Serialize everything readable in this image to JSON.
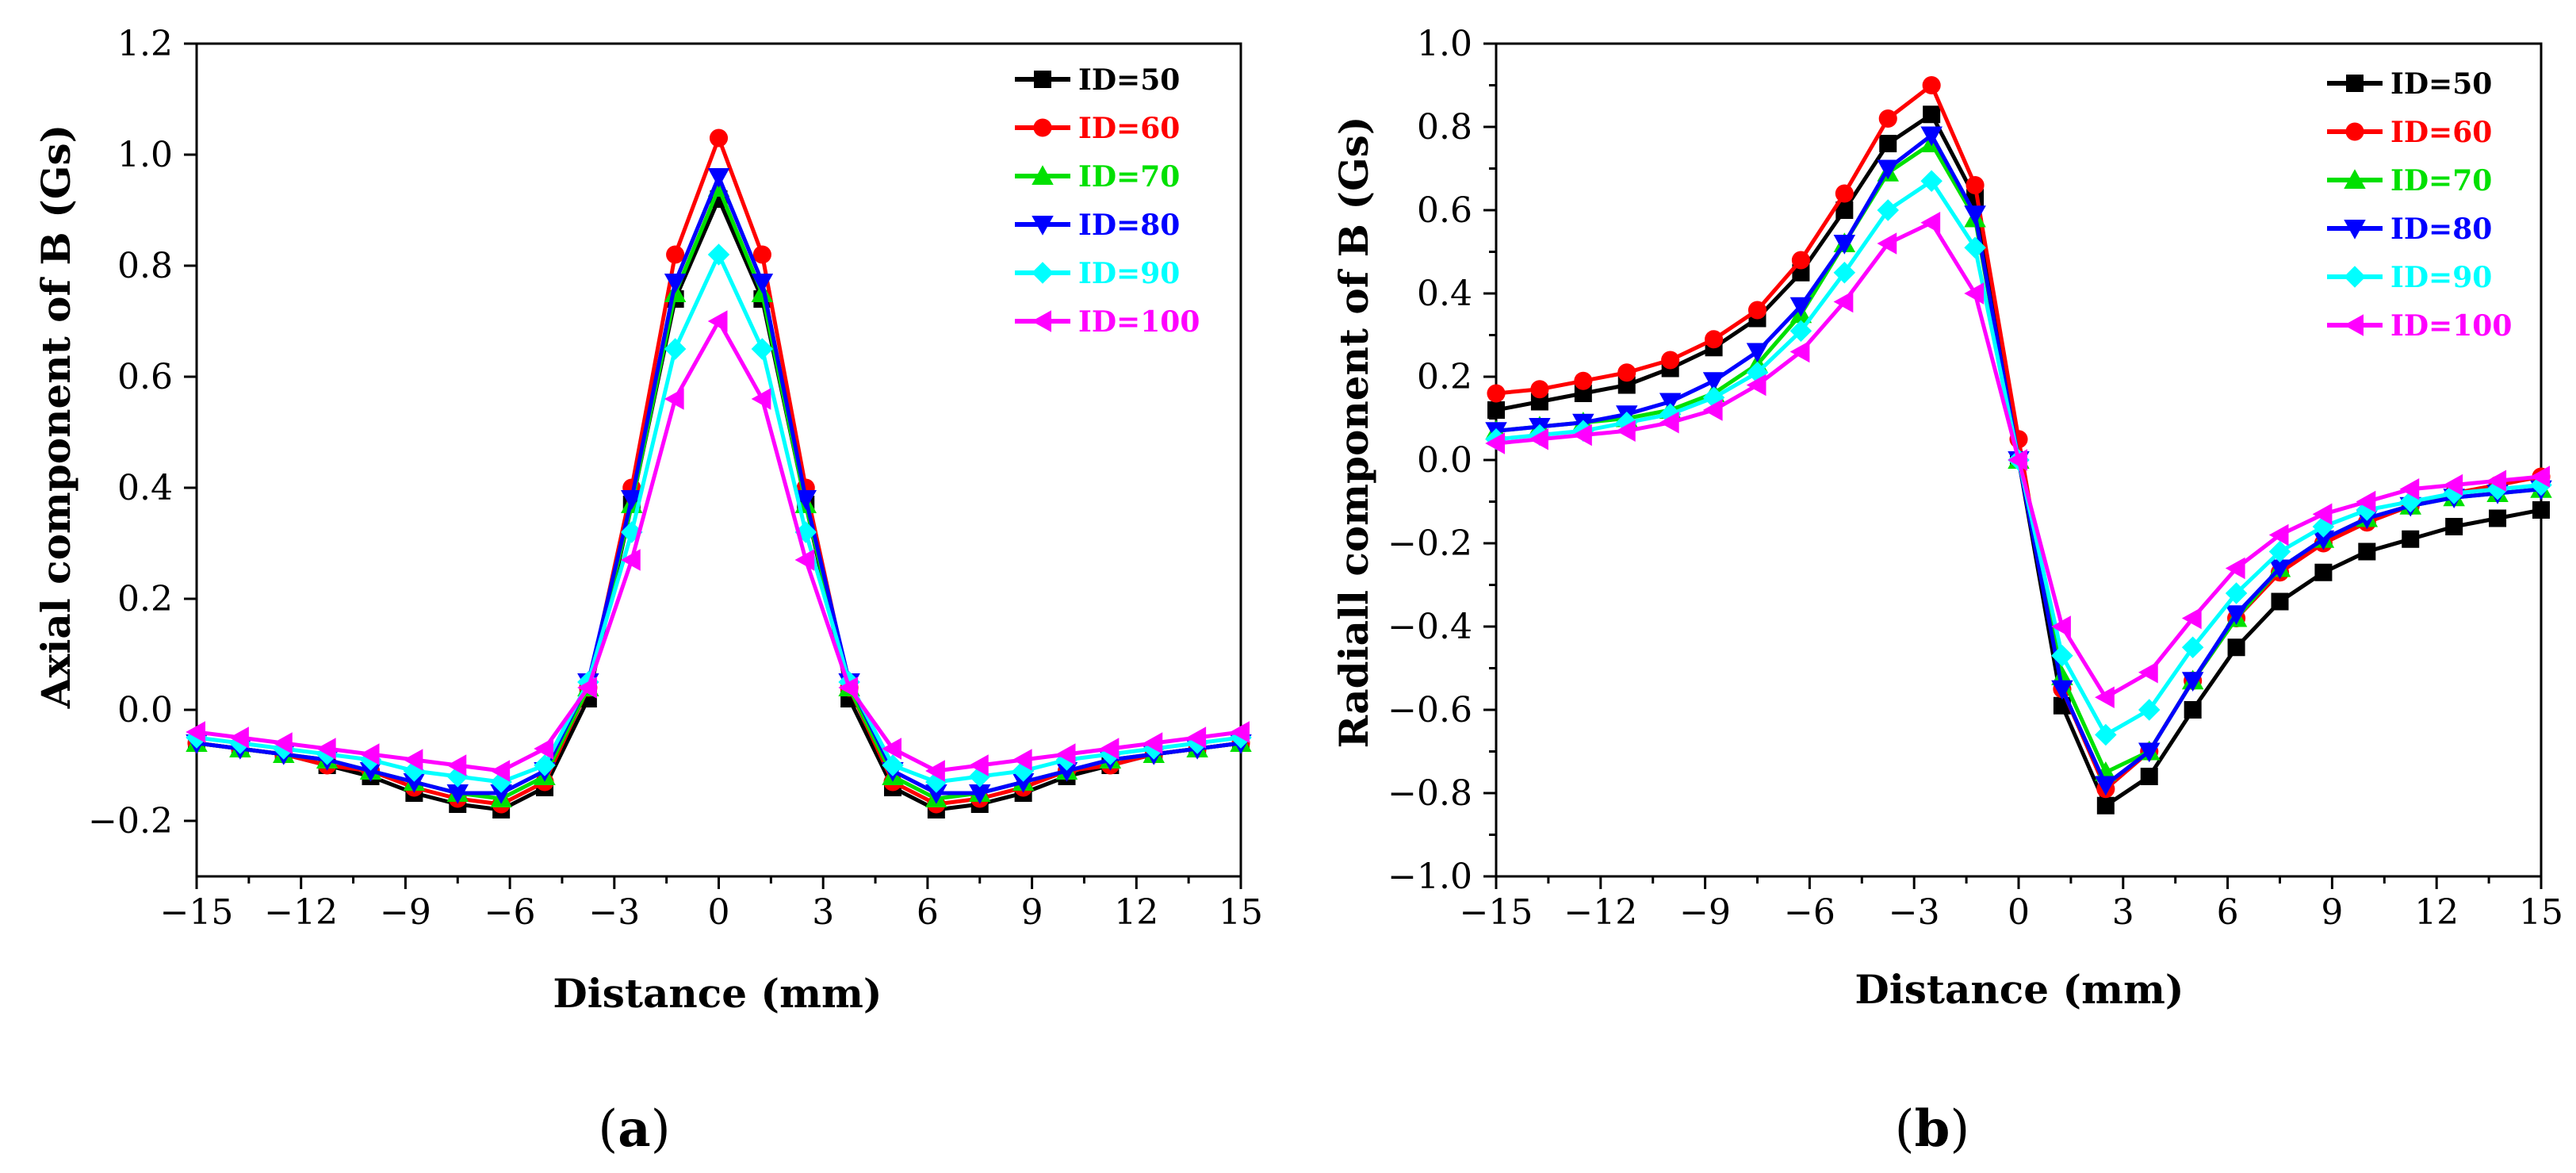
{
  "figure": {
    "panel_labels": [
      {
        "open": "(",
        "letter": "a",
        "close": ")"
      },
      {
        "open": "(",
        "letter": "b",
        "close": ")"
      }
    ]
  },
  "legend": [
    "ID=50",
    "ID=60",
    "ID=70",
    "ID=80",
    "ID=90",
    "ID=100"
  ],
  "colors": [
    "#000000",
    "#ff0000",
    "#00e000",
    "#0000ff",
    "#00ffff",
    "#ff00ff"
  ],
  "markers": [
    "square",
    "circle",
    "triangle-up",
    "triangle-down",
    "diamond",
    "triangle-left"
  ],
  "chart_data": [
    {
      "type": "line",
      "title": "",
      "xlabel": "Distance (mm)",
      "ylabel": "Axial component of B (Gs)",
      "xlim": [
        -15,
        15
      ],
      "ylim": [
        -0.3,
        1.2
      ],
      "xticks": [
        -15,
        -12,
        -9,
        -6,
        -3,
        0,
        3,
        6,
        9,
        12,
        15
      ],
      "xtick_labels": [
        "−15",
        "−12",
        "−9",
        "−6",
        "−3",
        "0",
        "3",
        "6",
        "9",
        "12",
        "15"
      ],
      "yticks": [
        -0.2,
        0.0,
        0.2,
        0.4,
        0.6,
        0.8,
        1.0,
        1.2
      ],
      "ytick_labels": [
        "−0.2",
        "0.0",
        "0.2",
        "0.4",
        "0.6",
        "0.8",
        "1.0",
        "1.2"
      ],
      "x": [
        -15,
        -13.75,
        -12.5,
        -11.25,
        -10,
        -8.75,
        -7.5,
        -6.25,
        -5,
        -3.75,
        -2.5,
        -1.25,
        0,
        1.25,
        2.5,
        3.75,
        5,
        6.25,
        7.5,
        8.75,
        10,
        11.25,
        12.5,
        13.75,
        15
      ],
      "series": [
        {
          "name": "ID=50",
          "values": [
            -0.06,
            -0.07,
            -0.08,
            -0.1,
            -0.12,
            -0.15,
            -0.17,
            -0.18,
            -0.14,
            0.02,
            0.37,
            0.74,
            0.92,
            0.74,
            0.37,
            0.02,
            -0.14,
            -0.18,
            -0.17,
            -0.15,
            -0.12,
            -0.1,
            -0.08,
            -0.07,
            -0.06
          ]
        },
        {
          "name": "ID=60",
          "values": [
            -0.06,
            -0.07,
            -0.08,
            -0.1,
            -0.11,
            -0.14,
            -0.16,
            -0.17,
            -0.13,
            0.04,
            0.4,
            0.82,
            1.03,
            0.82,
            0.4,
            0.04,
            -0.13,
            -0.17,
            -0.16,
            -0.14,
            -0.11,
            -0.1,
            -0.08,
            -0.07,
            -0.06
          ]
        },
        {
          "name": "ID=70",
          "values": [
            -0.06,
            -0.07,
            -0.08,
            -0.09,
            -0.11,
            -0.13,
            -0.15,
            -0.16,
            -0.12,
            0.04,
            0.37,
            0.75,
            0.94,
            0.75,
            0.37,
            0.04,
            -0.12,
            -0.16,
            -0.15,
            -0.13,
            -0.11,
            -0.09,
            -0.08,
            -0.07,
            -0.06
          ]
        },
        {
          "name": "ID=80",
          "values": [
            -0.06,
            -0.07,
            -0.08,
            -0.09,
            -0.11,
            -0.13,
            -0.15,
            -0.15,
            -0.11,
            0.05,
            0.38,
            0.77,
            0.96,
            0.77,
            0.38,
            0.05,
            -0.11,
            -0.15,
            -0.15,
            -0.13,
            -0.11,
            -0.09,
            -0.08,
            -0.07,
            -0.06
          ]
        },
        {
          "name": "ID=90",
          "values": [
            -0.05,
            -0.06,
            -0.07,
            -0.08,
            -0.09,
            -0.11,
            -0.12,
            -0.13,
            -0.1,
            0.05,
            0.32,
            0.65,
            0.82,
            0.65,
            0.32,
            0.05,
            -0.1,
            -0.13,
            -0.12,
            -0.11,
            -0.09,
            -0.08,
            -0.07,
            -0.06,
            -0.05
          ]
        },
        {
          "name": "ID=100",
          "values": [
            -0.04,
            -0.05,
            -0.06,
            -0.07,
            -0.08,
            -0.09,
            -0.1,
            -0.11,
            -0.07,
            0.04,
            0.27,
            0.56,
            0.7,
            0.56,
            0.27,
            0.04,
            -0.07,
            -0.11,
            -0.1,
            -0.09,
            -0.08,
            -0.07,
            -0.06,
            -0.05,
            -0.04
          ]
        }
      ]
    },
    {
      "type": "line",
      "title": "",
      "xlabel": "Distance (mm)",
      "ylabel": "Radiall component of B (Gs)",
      "xlim": [
        -15,
        15
      ],
      "ylim": [
        -1.0,
        1.0
      ],
      "xticks": [
        -15,
        -12,
        -9,
        -6,
        -3,
        0,
        3,
        6,
        9,
        12,
        15
      ],
      "xtick_labels": [
        "−15",
        "−12",
        "−9",
        "−6",
        "−3",
        "0",
        "3",
        "6",
        "9",
        "12",
        "15"
      ],
      "yticks": [
        -1.0,
        -0.8,
        -0.6,
        -0.4,
        -0.2,
        0.0,
        0.2,
        0.4,
        0.6,
        0.8,
        1.0
      ],
      "ytick_labels": [
        "−1.0",
        "−0.8",
        "−0.6",
        "−0.4",
        "−0.2",
        "0.0",
        "0.2",
        "0.4",
        "0.6",
        "0.8",
        "1.0"
      ],
      "x": [
        -15,
        -13.75,
        -12.5,
        -11.25,
        -10,
        -8.75,
        -7.5,
        -6.25,
        -5,
        -3.75,
        -2.5,
        -1.25,
        0,
        1.25,
        2.5,
        3.75,
        5,
        6.25,
        7.5,
        8.75,
        10,
        11.25,
        12.5,
        13.75,
        15
      ],
      "series": [
        {
          "name": "ID=50",
          "values": [
            0.12,
            0.14,
            0.16,
            0.18,
            0.22,
            0.27,
            0.34,
            0.45,
            0.6,
            0.76,
            0.83,
            0.63,
            0.0,
            -0.59,
            -0.83,
            -0.76,
            -0.6,
            -0.45,
            -0.34,
            -0.27,
            -0.22,
            -0.19,
            -0.16,
            -0.14,
            -0.12
          ]
        },
        {
          "name": "ID=60",
          "values": [
            0.16,
            0.17,
            0.19,
            0.21,
            0.24,
            0.29,
            0.36,
            0.48,
            0.64,
            0.82,
            0.9,
            0.66,
            0.05,
            -0.55,
            -0.79,
            -0.7,
            -0.53,
            -0.38,
            -0.27,
            -0.2,
            -0.15,
            -0.11,
            -0.08,
            -0.06,
            -0.04
          ]
        },
        {
          "name": "ID=70",
          "values": [
            0.07,
            0.08,
            0.09,
            0.1,
            0.12,
            0.16,
            0.23,
            0.35,
            0.52,
            0.69,
            0.76,
            0.58,
            0.0,
            -0.52,
            -0.75,
            -0.7,
            -0.53,
            -0.38,
            -0.26,
            -0.19,
            -0.14,
            -0.11,
            -0.09,
            -0.08,
            -0.07
          ]
        },
        {
          "name": "ID=80",
          "values": [
            0.07,
            0.08,
            0.09,
            0.11,
            0.14,
            0.19,
            0.26,
            0.37,
            0.52,
            0.7,
            0.78,
            0.59,
            0.0,
            -0.55,
            -0.78,
            -0.7,
            -0.53,
            -0.37,
            -0.26,
            -0.19,
            -0.14,
            -0.11,
            -0.09,
            -0.08,
            -0.07
          ]
        },
        {
          "name": "ID=90",
          "values": [
            0.05,
            0.06,
            0.07,
            0.09,
            0.11,
            0.15,
            0.21,
            0.31,
            0.45,
            0.6,
            0.67,
            0.51,
            0.0,
            -0.47,
            -0.66,
            -0.6,
            -0.45,
            -0.32,
            -0.22,
            -0.16,
            -0.12,
            -0.1,
            -0.08,
            -0.07,
            -0.06
          ]
        },
        {
          "name": "ID=100",
          "values": [
            0.04,
            0.05,
            0.06,
            0.07,
            0.09,
            0.12,
            0.18,
            0.26,
            0.38,
            0.52,
            0.57,
            0.4,
            0.0,
            -0.4,
            -0.57,
            -0.51,
            -0.38,
            -0.26,
            -0.18,
            -0.13,
            -0.1,
            -0.07,
            -0.06,
            -0.05,
            -0.04
          ]
        }
      ]
    }
  ]
}
